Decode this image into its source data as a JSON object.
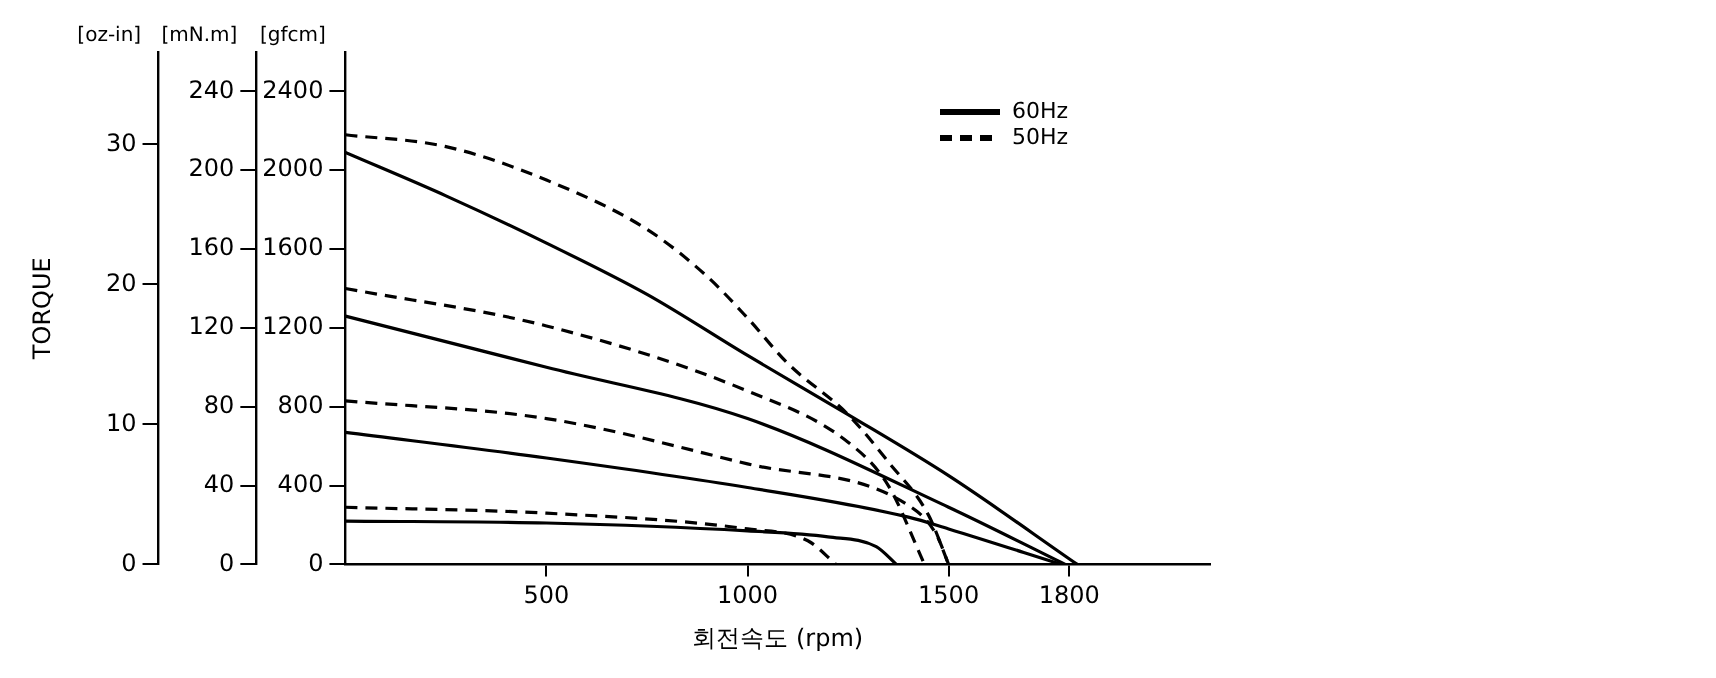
{
  "chart_data": {
    "type": "line",
    "xlabel": "회전속도 (rpm)",
    "ylabel": "[gfcm]",
    "y2label": "[mN.m]",
    "y3label": "[oz-in]",
    "annotations": [
      "TORQUE"
    ],
    "xlim": [
      0,
      2150
    ],
    "xticks": [
      500,
      1000,
      1500,
      1800
    ],
    "ylim": [
      0,
      2600
    ],
    "yticks": [
      0,
      400,
      800,
      1200,
      1600,
      2000,
      2400
    ],
    "y2lim": [
      0,
      260
    ],
    "y2ticks": [
      0,
      40,
      80,
      120,
      160,
      200,
      240
    ],
    "y3lim": [
      0,
      36.6
    ],
    "y3ticks": [
      0,
      10,
      20,
      30
    ],
    "grid": false,
    "legend": "top right",
    "marker": "none",
    "series": [
      {
        "name": "60Hz",
        "color": "#000000",
        "line_style": "solid",
        "x": [
          0,
          250,
          500,
          750,
          1000,
          1250,
          1500,
          1820
        ],
        "values": [
          2090,
          1870,
          1630,
          1370,
          1060,
          760,
          450,
          0
        ]
      },
      {
        "name": "50Hz",
        "color": "#000000",
        "line_style": "dashed",
        "x": [
          0,
          250,
          500,
          750,
          900,
          1000,
          1100,
          1250,
          1350,
          1450,
          1500
        ],
        "values": [
          2180,
          2120,
          1950,
          1700,
          1460,
          1250,
          1020,
          760,
          520,
          250,
          0
        ]
      },
      {
        "color": "#000000",
        "line_style": "solid",
        "x": [
          0,
          500,
          1000,
          1500,
          1790
        ],
        "values": [
          1260,
          1000,
          740,
          290,
          0
        ]
      },
      {
        "color": "#000000",
        "line_style": "dashed",
        "x": [
          0,
          500,
          1000,
          1250,
          1350,
          1440
        ],
        "values": [
          1400,
          1210,
          880,
          620,
          400,
          0
        ]
      },
      {
        "color": "#000000",
        "line_style": "solid",
        "x": [
          0,
          500,
          1000,
          1400,
          1500,
          1780
        ],
        "values": [
          670,
          540,
          390,
          240,
          180,
          0
        ]
      },
      {
        "color": "#000000",
        "line_style": "dashed",
        "x": [
          0,
          500,
          1000,
          1400,
          1470,
          1500
        ],
        "values": [
          830,
          740,
          510,
          300,
          150,
          0
        ]
      },
      {
        "color": "#000000",
        "line_style": "dashed",
        "x": [
          0,
          500,
          1000,
          1150,
          1220
        ],
        "values": [
          290,
          260,
          180,
          120,
          0
        ]
      },
      {
        "color": "#000000",
        "line_style": "solid",
        "x": [
          0,
          500,
          1000,
          1200,
          1320,
          1370
        ],
        "values": [
          220,
          210,
          170,
          140,
          90,
          0
        ]
      }
    ]
  }
}
